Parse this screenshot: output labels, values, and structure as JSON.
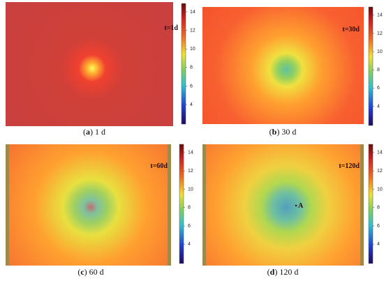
{
  "panels": [
    {
      "caption": {
        "prefix": "(",
        "label": "a",
        "suffix": ") 1 d"
      },
      "annotation": "t=1d",
      "colorbar_ticks": [
        4,
        6,
        8,
        10,
        12,
        14
      ]
    },
    {
      "caption": {
        "prefix": "(",
        "label": "b",
        "suffix": ") 30 d"
      },
      "annotation": "t=30d",
      "colorbar_ticks": [
        4,
        6,
        8,
        10,
        12,
        14
      ]
    },
    {
      "caption": {
        "prefix": "(",
        "label": "c",
        "suffix": ") 60 d"
      },
      "annotation": "t=60d",
      "colorbar_ticks": [
        4,
        6,
        8,
        10,
        12,
        14
      ]
    },
    {
      "caption": {
        "prefix": "(",
        "label": "d",
        "suffix": ") 120 d"
      },
      "annotation": "t=120d",
      "point_label": "A",
      "colorbar_ticks": [
        4,
        6,
        8,
        10,
        12,
        14
      ]
    }
  ]
}
